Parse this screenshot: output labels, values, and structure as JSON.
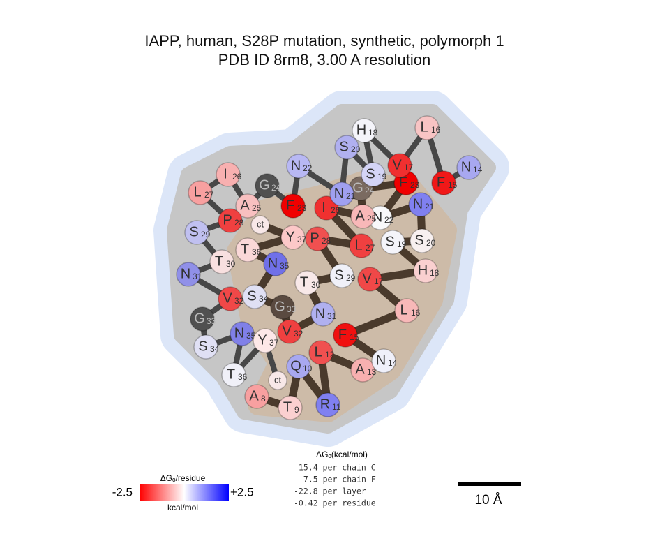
{
  "header": {
    "title": "IAPP, human, S28P mutation, synthetic, polymorph 1",
    "subtitle": "PDB ID 8rm8, 3.00 A resolution"
  },
  "chains": [
    {
      "backbone_color": "#474747",
      "residues": [
        {
          "letter": "N",
          "number": 14,
          "color": "#a8a8f0"
        },
        {
          "letter": "F",
          "number": 15,
          "color": "#f01818"
        },
        {
          "letter": "L",
          "number": 16,
          "color": "#f8c4c4"
        },
        {
          "letter": "V",
          "number": 17,
          "color": "#f03030"
        },
        {
          "letter": "H",
          "number": 18,
          "color": "#f4f4fa"
        },
        {
          "letter": "S",
          "number": 19,
          "color": "#d4d4f6"
        },
        {
          "letter": "S",
          "number": 20,
          "color": "#b0b0f0"
        },
        {
          "letter": "N",
          "number": 21,
          "color": "#a0a0f0"
        },
        {
          "letter": "N",
          "number": 22,
          "color": "#b8b8f4"
        },
        {
          "letter": "F",
          "number": 23,
          "color": "#f00000"
        },
        {
          "letter": "G",
          "number": 24,
          "color": "#505050"
        },
        {
          "letter": "A",
          "number": 25,
          "color": "#f8c0c0"
        },
        {
          "letter": "I",
          "number": 26,
          "color": "#f8b0b0"
        },
        {
          "letter": "L",
          "number": 27,
          "color": "#f8a0a0"
        },
        {
          "letter": "P",
          "number": 28,
          "color": "#f04040"
        },
        {
          "letter": "S",
          "number": 29,
          "color": "#c0c0f0"
        },
        {
          "letter": "T",
          "number": 30,
          "color": "#f8e0e0"
        },
        {
          "letter": "N",
          "number": 31,
          "color": "#9090e8"
        },
        {
          "letter": "V",
          "number": 32,
          "color": "#f04848"
        },
        {
          "letter": "G",
          "number": 33,
          "color": "#505050"
        },
        {
          "letter": "S",
          "number": 34,
          "color": "#e0e0f4"
        },
        {
          "letter": "N",
          "number": 35,
          "color": "#8080e8"
        },
        {
          "letter": "T",
          "number": 36,
          "color": "#f0f0f8"
        },
        {
          "letter": "Y",
          "number": 37,
          "color": "#fde8e8"
        },
        {
          "letter": "ct",
          "color": "#f8e8e8"
        }
      ]
    },
    {
      "backbone_color": "#4a3a2c",
      "residues": [
        {
          "letter": "A",
          "number": 8,
          "color": "#f8a0a0"
        },
        {
          "letter": "T",
          "number": 9,
          "color": "#fbd0d0"
        },
        {
          "letter": "Q",
          "number": 10,
          "color": "#a8a8f0"
        },
        {
          "letter": "R",
          "number": 11,
          "color": "#8080f0"
        },
        {
          "letter": "L",
          "number": 12,
          "color": "#f05050"
        },
        {
          "letter": "A",
          "number": 13,
          "color": "#f8b0b0"
        },
        {
          "letter": "N",
          "number": 14,
          "color": "#f0f0fa"
        },
        {
          "letter": "F",
          "number": 15,
          "color": "#f01010"
        },
        {
          "letter": "L",
          "number": 16,
          "color": "#f8b8b8"
        },
        {
          "letter": "V",
          "number": 17,
          "color": "#f04848"
        },
        {
          "letter": "H",
          "number": 18,
          "color": "#fad0d0"
        },
        {
          "letter": "S",
          "number": 19,
          "color": "#f4f4fa"
        },
        {
          "letter": "S",
          "number": 20,
          "color": "#f8f0f0"
        },
        {
          "letter": "N",
          "number": 21,
          "color": "#8080f0"
        },
        {
          "letter": "N",
          "number": 22,
          "color": "#f8f8fa"
        },
        {
          "letter": "F",
          "number": 23,
          "color": "#f00000"
        },
        {
          "letter": "G",
          "number": 24,
          "color": "#7a6a60"
        },
        {
          "letter": "A",
          "number": 25,
          "color": "#f8b8b8"
        },
        {
          "letter": "I",
          "number": 26,
          "color": "#f03030"
        },
        {
          "letter": "L",
          "number": 27,
          "color": "#f04040"
        },
        {
          "letter": "P",
          "number": 28,
          "color": "#f05050"
        },
        {
          "letter": "S",
          "number": 29,
          "color": "#f0f0f8"
        },
        {
          "letter": "T",
          "number": 30,
          "color": "#f8e8e8"
        },
        {
          "letter": "N",
          "number": 31,
          "color": "#b0b0f0"
        },
        {
          "letter": "V",
          "number": 32,
          "color": "#f04040"
        },
        {
          "letter": "G",
          "number": 33,
          "color": "#5a4a40"
        },
        {
          "letter": "S",
          "number": 34,
          "color": "#e0e0f4"
        },
        {
          "letter": "N",
          "number": 35,
          "color": "#7070e8"
        },
        {
          "letter": "T",
          "number": 36,
          "color": "#fad8d8"
        },
        {
          "letter": "Y",
          "number": 37,
          "color": "#fcc8c8"
        },
        {
          "letter": "ct",
          "color": "#f8e8e8"
        }
      ]
    }
  ],
  "legend": {
    "title": "ΔGₒ/residue",
    "min_label": "-2.5",
    "max_label": "+2.5",
    "unit": "kcal/mol",
    "colors": [
      "#ff0000",
      "#ffffff",
      "#0000ff"
    ]
  },
  "energy": {
    "title": "ΔGₒ(kcal/mol)",
    "lines": [
      "-15.4 per chain C",
      "-7.5 per chain F",
      "-22.8 per layer",
      "-0.42 per residue"
    ]
  },
  "scale_bar": {
    "label": "10 Å"
  }
}
